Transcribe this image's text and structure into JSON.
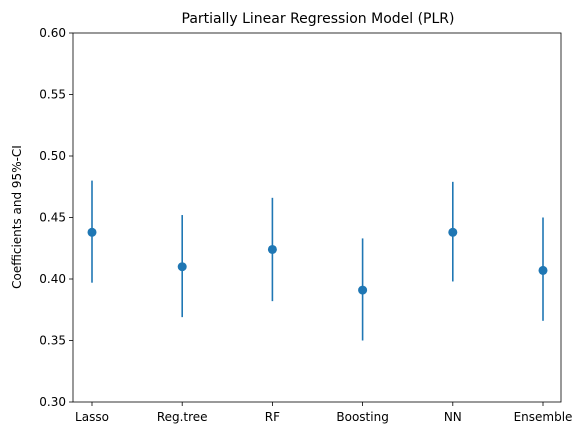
{
  "chart_data": {
    "type": "scatter",
    "title": "Partially Linear Regression Model (PLR)",
    "xlabel": "",
    "ylabel": "Coefficients and 95%-CI",
    "categories": [
      "Lasso",
      "Reg.tree",
      "RF",
      "Boosting",
      "NN",
      "Ensemble"
    ],
    "ylim": [
      0.3,
      0.6
    ],
    "yticks": [
      0.3,
      0.35,
      0.4,
      0.45,
      0.5,
      0.55,
      0.6
    ],
    "ytick_labels": [
      "0.30",
      "0.35",
      "0.40",
      "0.45",
      "0.50",
      "0.55",
      "0.60"
    ],
    "grid": false,
    "series": [
      {
        "coef": [
          0.438,
          0.41,
          0.424,
          0.391,
          0.438,
          0.407
        ],
        "ci_lower": [
          0.397,
          0.369,
          0.382,
          0.35,
          0.398,
          0.366
        ],
        "ci_upper": [
          0.48,
          0.452,
          0.466,
          0.433,
          0.479,
          0.45
        ]
      }
    ],
    "color": "#1f77b4"
  }
}
